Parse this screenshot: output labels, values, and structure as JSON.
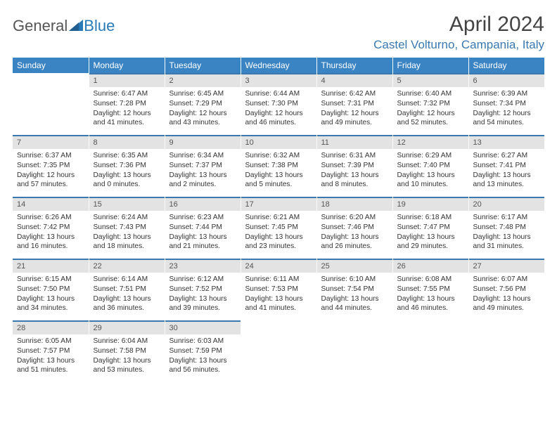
{
  "brand": {
    "part1": "General",
    "part2": "Blue"
  },
  "title": "April 2024",
  "location": "Castel Volturno, Campania, Italy",
  "colors": {
    "header_bg": "#3a84c4",
    "accent": "#3a79b0",
    "daybar_bg": "#e3e3e3",
    "text": "#333333",
    "page_bg": "#ffffff"
  },
  "weekdays": [
    "Sunday",
    "Monday",
    "Tuesday",
    "Wednesday",
    "Thursday",
    "Friday",
    "Saturday"
  ],
  "weeks": [
    [
      {
        "day": "",
        "sunrise": "",
        "sunset": "",
        "daylight": ""
      },
      {
        "day": "1",
        "sunrise": "Sunrise: 6:47 AM",
        "sunset": "Sunset: 7:28 PM",
        "daylight": "Daylight: 12 hours and 41 minutes."
      },
      {
        "day": "2",
        "sunrise": "Sunrise: 6:45 AM",
        "sunset": "Sunset: 7:29 PM",
        "daylight": "Daylight: 12 hours and 43 minutes."
      },
      {
        "day": "3",
        "sunrise": "Sunrise: 6:44 AM",
        "sunset": "Sunset: 7:30 PM",
        "daylight": "Daylight: 12 hours and 46 minutes."
      },
      {
        "day": "4",
        "sunrise": "Sunrise: 6:42 AM",
        "sunset": "Sunset: 7:31 PM",
        "daylight": "Daylight: 12 hours and 49 minutes."
      },
      {
        "day": "5",
        "sunrise": "Sunrise: 6:40 AM",
        "sunset": "Sunset: 7:32 PM",
        "daylight": "Daylight: 12 hours and 52 minutes."
      },
      {
        "day": "6",
        "sunrise": "Sunrise: 6:39 AM",
        "sunset": "Sunset: 7:34 PM",
        "daylight": "Daylight: 12 hours and 54 minutes."
      }
    ],
    [
      {
        "day": "7",
        "sunrise": "Sunrise: 6:37 AM",
        "sunset": "Sunset: 7:35 PM",
        "daylight": "Daylight: 12 hours and 57 minutes."
      },
      {
        "day": "8",
        "sunrise": "Sunrise: 6:35 AM",
        "sunset": "Sunset: 7:36 PM",
        "daylight": "Daylight: 13 hours and 0 minutes."
      },
      {
        "day": "9",
        "sunrise": "Sunrise: 6:34 AM",
        "sunset": "Sunset: 7:37 PM",
        "daylight": "Daylight: 13 hours and 2 minutes."
      },
      {
        "day": "10",
        "sunrise": "Sunrise: 6:32 AM",
        "sunset": "Sunset: 7:38 PM",
        "daylight": "Daylight: 13 hours and 5 minutes."
      },
      {
        "day": "11",
        "sunrise": "Sunrise: 6:31 AM",
        "sunset": "Sunset: 7:39 PM",
        "daylight": "Daylight: 13 hours and 8 minutes."
      },
      {
        "day": "12",
        "sunrise": "Sunrise: 6:29 AM",
        "sunset": "Sunset: 7:40 PM",
        "daylight": "Daylight: 13 hours and 10 minutes."
      },
      {
        "day": "13",
        "sunrise": "Sunrise: 6:27 AM",
        "sunset": "Sunset: 7:41 PM",
        "daylight": "Daylight: 13 hours and 13 minutes."
      }
    ],
    [
      {
        "day": "14",
        "sunrise": "Sunrise: 6:26 AM",
        "sunset": "Sunset: 7:42 PM",
        "daylight": "Daylight: 13 hours and 16 minutes."
      },
      {
        "day": "15",
        "sunrise": "Sunrise: 6:24 AM",
        "sunset": "Sunset: 7:43 PM",
        "daylight": "Daylight: 13 hours and 18 minutes."
      },
      {
        "day": "16",
        "sunrise": "Sunrise: 6:23 AM",
        "sunset": "Sunset: 7:44 PM",
        "daylight": "Daylight: 13 hours and 21 minutes."
      },
      {
        "day": "17",
        "sunrise": "Sunrise: 6:21 AM",
        "sunset": "Sunset: 7:45 PM",
        "daylight": "Daylight: 13 hours and 23 minutes."
      },
      {
        "day": "18",
        "sunrise": "Sunrise: 6:20 AM",
        "sunset": "Sunset: 7:46 PM",
        "daylight": "Daylight: 13 hours and 26 minutes."
      },
      {
        "day": "19",
        "sunrise": "Sunrise: 6:18 AM",
        "sunset": "Sunset: 7:47 PM",
        "daylight": "Daylight: 13 hours and 29 minutes."
      },
      {
        "day": "20",
        "sunrise": "Sunrise: 6:17 AM",
        "sunset": "Sunset: 7:48 PM",
        "daylight": "Daylight: 13 hours and 31 minutes."
      }
    ],
    [
      {
        "day": "21",
        "sunrise": "Sunrise: 6:15 AM",
        "sunset": "Sunset: 7:50 PM",
        "daylight": "Daylight: 13 hours and 34 minutes."
      },
      {
        "day": "22",
        "sunrise": "Sunrise: 6:14 AM",
        "sunset": "Sunset: 7:51 PM",
        "daylight": "Daylight: 13 hours and 36 minutes."
      },
      {
        "day": "23",
        "sunrise": "Sunrise: 6:12 AM",
        "sunset": "Sunset: 7:52 PM",
        "daylight": "Daylight: 13 hours and 39 minutes."
      },
      {
        "day": "24",
        "sunrise": "Sunrise: 6:11 AM",
        "sunset": "Sunset: 7:53 PM",
        "daylight": "Daylight: 13 hours and 41 minutes."
      },
      {
        "day": "25",
        "sunrise": "Sunrise: 6:10 AM",
        "sunset": "Sunset: 7:54 PM",
        "daylight": "Daylight: 13 hours and 44 minutes."
      },
      {
        "day": "26",
        "sunrise": "Sunrise: 6:08 AM",
        "sunset": "Sunset: 7:55 PM",
        "daylight": "Daylight: 13 hours and 46 minutes."
      },
      {
        "day": "27",
        "sunrise": "Sunrise: 6:07 AM",
        "sunset": "Sunset: 7:56 PM",
        "daylight": "Daylight: 13 hours and 49 minutes."
      }
    ],
    [
      {
        "day": "28",
        "sunrise": "Sunrise: 6:05 AM",
        "sunset": "Sunset: 7:57 PM",
        "daylight": "Daylight: 13 hours and 51 minutes."
      },
      {
        "day": "29",
        "sunrise": "Sunrise: 6:04 AM",
        "sunset": "Sunset: 7:58 PM",
        "daylight": "Daylight: 13 hours and 53 minutes."
      },
      {
        "day": "30",
        "sunrise": "Sunrise: 6:03 AM",
        "sunset": "Sunset: 7:59 PM",
        "daylight": "Daylight: 13 hours and 56 minutes."
      },
      {
        "day": "",
        "sunrise": "",
        "sunset": "",
        "daylight": ""
      },
      {
        "day": "",
        "sunrise": "",
        "sunset": "",
        "daylight": ""
      },
      {
        "day": "",
        "sunrise": "",
        "sunset": "",
        "daylight": ""
      },
      {
        "day": "",
        "sunrise": "",
        "sunset": "",
        "daylight": ""
      }
    ]
  ]
}
